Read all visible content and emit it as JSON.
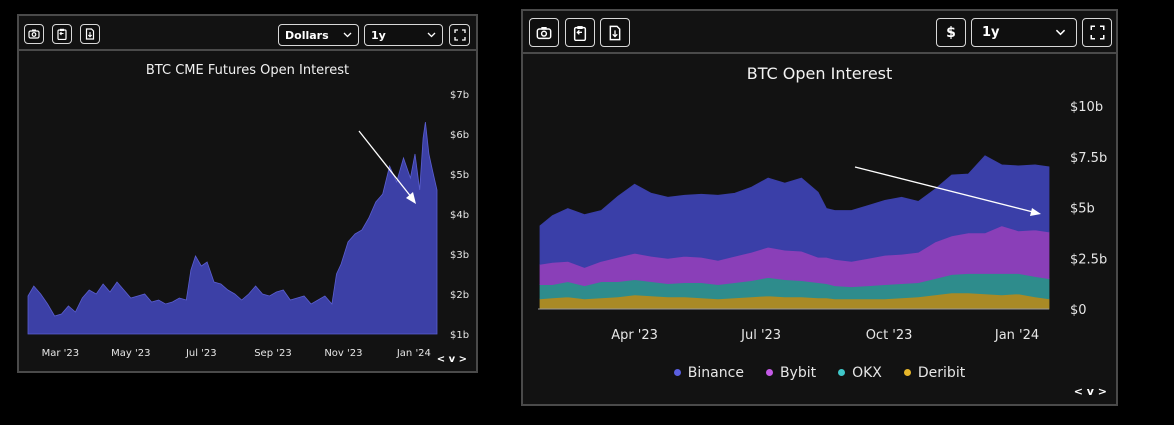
{
  "left_panel": {
    "toolbar": {
      "camera_icon": "camera-icon",
      "clipboard_icon": "clipboard-icon",
      "download_icon": "download-file-icon",
      "currency_select": "Dollars",
      "range_select": "1y",
      "fullscreen_icon": "fullscreen-icon"
    },
    "nav_label": "< v >"
  },
  "right_panel": {
    "toolbar": {
      "camera_icon": "camera-icon",
      "clipboard_icon": "clipboard-icon",
      "download_icon": "download-file-icon",
      "currency_button": "$",
      "range_select": "1y",
      "fullscreen_icon": "fullscreen-icon"
    },
    "nav_label": "< v >"
  },
  "colors": {
    "cme_fill": "#3c40a6",
    "binance": "#3a3fa8",
    "bybit": "#8a3fb8",
    "okx": "#2e8c8c",
    "deribit": "#a98a25"
  },
  "chart_data": [
    {
      "type": "area",
      "title": "BTC CME Futures Open Interest",
      "xlabel": "",
      "ylabel": "",
      "x_tick_labels": [
        "Mar '23",
        "May '23",
        "Jul '23",
        "Sep '23",
        "Nov '23",
        "Jan '24"
      ],
      "y_tick_labels": [
        "$1b",
        "$2b",
        "$3b",
        "$4b",
        "$5b",
        "$6b",
        "$7b"
      ],
      "ylim": [
        1,
        7
      ],
      "x_range": [
        "2023-02-01",
        "2024-01-21"
      ],
      "series": [
        {
          "x": [
            "2023-02-01",
            "2023-02-06",
            "2023-02-12",
            "2023-02-18",
            "2023-02-24",
            "2023-03-02",
            "2023-03-08",
            "2023-03-14",
            "2023-03-20",
            "2023-03-26",
            "2023-04-01",
            "2023-04-07",
            "2023-04-13",
            "2023-04-19",
            "2023-04-25",
            "2023-05-01",
            "2023-05-07",
            "2023-05-13",
            "2023-05-19",
            "2023-05-25",
            "2023-05-31",
            "2023-06-06",
            "2023-06-12",
            "2023-06-18",
            "2023-06-22",
            "2023-06-26",
            "2023-07-01",
            "2023-07-06",
            "2023-07-12",
            "2023-07-18",
            "2023-07-24",
            "2023-07-30",
            "2023-08-05",
            "2023-08-11",
            "2023-08-17",
            "2023-08-23",
            "2023-08-29",
            "2023-09-04",
            "2023-09-10",
            "2023-09-16",
            "2023-09-22",
            "2023-09-28",
            "2023-10-04",
            "2023-10-10",
            "2023-10-16",
            "2023-10-22",
            "2023-10-26",
            "2023-10-30",
            "2023-11-05",
            "2023-11-11",
            "2023-11-17",
            "2023-11-23",
            "2023-11-29",
            "2023-12-05",
            "2023-12-11",
            "2023-12-17",
            "2023-12-23",
            "2023-12-29",
            "2024-01-02",
            "2024-01-06",
            "2024-01-09",
            "2024-01-11",
            "2024-01-14",
            "2024-01-17",
            "2024-01-21"
          ],
          "y": [
            1.95,
            2.2,
            2.0,
            1.75,
            1.45,
            1.5,
            1.7,
            1.55,
            1.9,
            2.1,
            2.0,
            2.25,
            2.05,
            2.3,
            2.1,
            1.9,
            1.95,
            2.0,
            1.8,
            1.85,
            1.75,
            1.8,
            1.9,
            1.85,
            2.6,
            2.95,
            2.7,
            2.8,
            2.3,
            2.25,
            2.1,
            2.0,
            1.85,
            2.0,
            2.2,
            2.0,
            1.95,
            2.05,
            2.1,
            1.85,
            1.9,
            1.95,
            1.75,
            1.85,
            1.95,
            1.75,
            2.5,
            2.75,
            3.3,
            3.5,
            3.6,
            3.9,
            4.3,
            4.5,
            5.2,
            4.8,
            5.4,
            4.9,
            5.5,
            4.6,
            5.9,
            6.3,
            5.5,
            5.1,
            4.6
          ]
        }
      ]
    },
    {
      "type": "area",
      "stacked": true,
      "title": "BTC Open Interest",
      "xlabel": "",
      "ylabel": "",
      "x_tick_labels": [
        "Apr '23",
        "Jul '23",
        "Oct '23",
        "Jan '24"
      ],
      "y_tick_labels": [
        "$0",
        "$2.5b",
        "$5b",
        "$7.5b",
        "$10b"
      ],
      "ylim": [
        0,
        10
      ],
      "legend": "bottom",
      "x_range": [
        "2023-01-23",
        "2024-01-24"
      ],
      "x": [
        "2023-01-23",
        "2023-02-01",
        "2023-02-12",
        "2023-02-24",
        "2023-03-08",
        "2023-03-20",
        "2023-04-01",
        "2023-04-13",
        "2023-04-25",
        "2023-05-07",
        "2023-05-19",
        "2023-05-31",
        "2023-06-12",
        "2023-06-24",
        "2023-07-06",
        "2023-07-18",
        "2023-07-30",
        "2023-08-11",
        "2023-08-17",
        "2023-08-23",
        "2023-09-04",
        "2023-09-16",
        "2023-09-28",
        "2023-10-10",
        "2023-10-22",
        "2023-11-03",
        "2023-11-15",
        "2023-11-27",
        "2023-12-09",
        "2023-12-21",
        "2024-01-02",
        "2024-01-14",
        "2024-01-24"
      ],
      "series": [
        {
          "name": "Deribit",
          "values": [
            0.5,
            0.55,
            0.6,
            0.5,
            0.55,
            0.6,
            0.7,
            0.65,
            0.6,
            0.6,
            0.55,
            0.5,
            0.55,
            0.6,
            0.65,
            0.6,
            0.6,
            0.55,
            0.55,
            0.5,
            0.5,
            0.5,
            0.5,
            0.55,
            0.6,
            0.7,
            0.8,
            0.8,
            0.75,
            0.7,
            0.75,
            0.6,
            0.5
          ]
        },
        {
          "name": "OKX",
          "values": [
            0.7,
            0.65,
            0.75,
            0.65,
            0.8,
            0.75,
            0.75,
            0.7,
            0.65,
            0.7,
            0.75,
            0.7,
            0.75,
            0.8,
            0.9,
            0.85,
            0.8,
            0.75,
            0.7,
            0.65,
            0.6,
            0.65,
            0.7,
            0.7,
            0.7,
            0.8,
            0.9,
            0.95,
            1.0,
            1.05,
            1.0,
            1.0,
            1.0
          ]
        },
        {
          "name": "Bybit",
          "values": [
            1.0,
            1.1,
            1.0,
            0.9,
            1.0,
            1.2,
            1.3,
            1.25,
            1.25,
            1.3,
            1.25,
            1.2,
            1.3,
            1.4,
            1.5,
            1.45,
            1.45,
            1.25,
            1.3,
            1.3,
            1.25,
            1.35,
            1.45,
            1.45,
            1.5,
            1.8,
            1.9,
            2.0,
            2.0,
            2.35,
            2.1,
            2.3,
            2.3
          ]
        },
        {
          "name": "Binance",
          "values": [
            1.9,
            2.3,
            2.6,
            2.6,
            2.5,
            3.0,
            3.4,
            3.1,
            3.0,
            3.0,
            3.1,
            3.2,
            3.1,
            3.2,
            3.4,
            3.3,
            3.6,
            3.2,
            2.4,
            2.4,
            2.5,
            2.6,
            2.7,
            2.8,
            2.5,
            2.6,
            3.0,
            2.9,
            3.8,
            3.0,
            3.2,
            3.2,
            3.2
          ]
        }
      ]
    }
  ]
}
